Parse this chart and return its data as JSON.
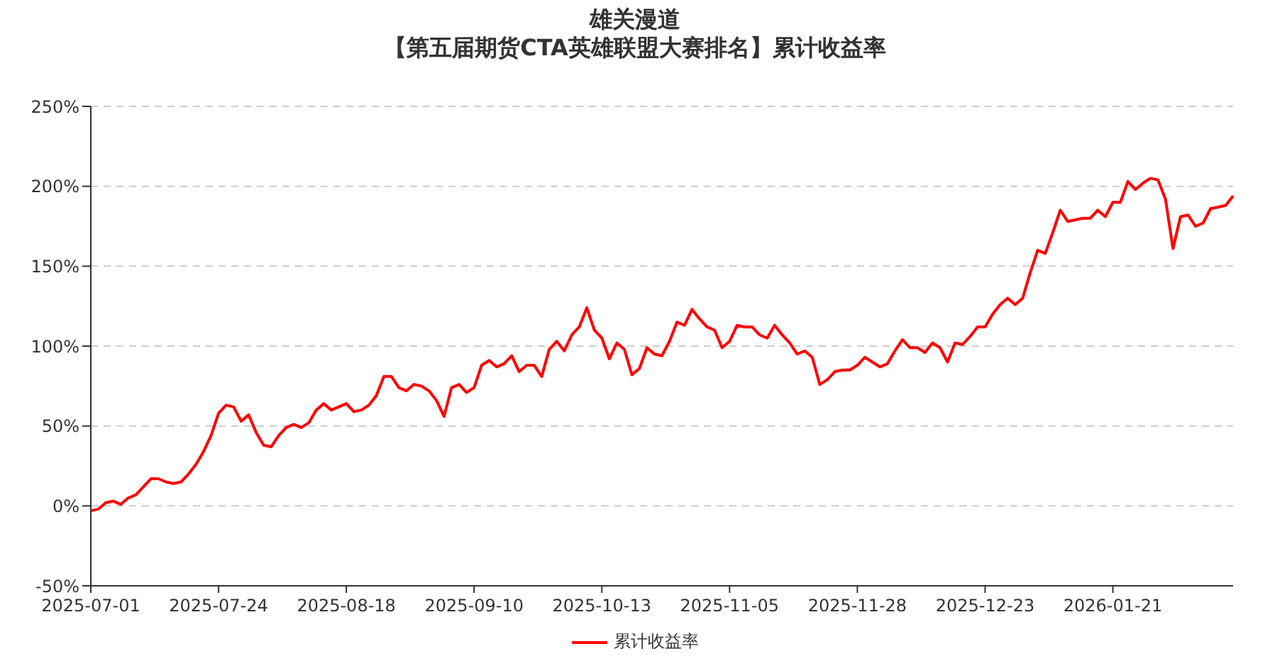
{
  "chart_data": {
    "type": "line",
    "title": "雄关漫道",
    "subtitle": "【第五届期货CTA英雄联盟大赛排名】累计收益率",
    "categories": [
      "2025-07-01",
      null,
      null,
      null,
      null,
      null,
      null,
      null,
      null,
      null,
      null,
      null,
      null,
      null,
      null,
      null,
      null,
      "2025-07-24",
      null,
      null,
      null,
      null,
      null,
      null,
      null,
      null,
      null,
      null,
      null,
      null,
      null,
      null,
      null,
      null,
      "2025-08-18",
      null,
      null,
      null,
      null,
      null,
      null,
      null,
      null,
      null,
      null,
      null,
      null,
      null,
      null,
      null,
      null,
      "2025-09-10",
      null,
      null,
      null,
      null,
      null,
      null,
      null,
      null,
      null,
      null,
      null,
      null,
      null,
      null,
      null,
      null,
      "2025-10-13",
      null,
      null,
      null,
      null,
      null,
      null,
      null,
      null,
      null,
      null,
      null,
      null,
      null,
      null,
      null,
      null,
      "2025-11-05",
      null,
      null,
      null,
      null,
      null,
      null,
      null,
      null,
      null,
      null,
      null,
      null,
      null,
      null,
      null,
      null,
      "2025-11-28",
      null,
      null,
      null,
      null,
      null,
      null,
      null,
      null,
      null,
      null,
      null,
      null,
      null,
      null,
      null,
      null,
      "2025-12-23",
      null,
      null,
      null,
      null,
      null,
      null,
      null,
      null,
      null,
      null,
      null,
      null,
      null,
      null,
      null,
      null,
      "2026-01-21",
      null,
      null,
      null,
      null,
      null,
      null,
      null,
      null,
      null,
      null,
      null,
      null,
      null,
      null,
      null,
      null
    ],
    "series": [
      {
        "name": "累计收益率",
        "color": "#ff0000",
        "values": [
          -3,
          -2,
          2,
          3,
          1,
          5,
          7,
          12,
          17,
          17,
          15,
          14,
          15,
          20,
          26,
          34,
          44,
          58,
          63,
          62,
          53,
          57,
          46,
          38,
          37,
          44,
          49,
          51,
          49,
          52,
          60,
          64,
          60,
          62,
          64,
          59,
          60,
          63,
          69,
          81,
          81,
          74,
          72,
          76,
          75,
          72,
          66,
          56,
          74,
          76,
          71,
          74,
          88,
          91,
          87,
          89,
          94,
          84,
          88,
          88,
          81,
          98,
          103,
          97,
          107,
          112,
          124,
          110,
          105,
          92,
          102,
          98,
          82,
          86,
          99,
          95,
          94,
          103,
          115,
          113,
          123,
          117,
          112,
          110,
          99,
          103,
          113,
          112,
          112,
          107,
          105,
          113,
          107,
          102,
          95,
          97,
          93,
          76,
          79,
          84,
          85,
          85,
          88,
          93,
          90,
          87,
          89,
          97,
          104,
          99,
          99,
          96,
          102,
          99,
          90,
          102,
          101,
          106,
          112,
          112,
          120,
          126,
          130,
          126,
          130,
          146,
          160,
          158,
          171,
          185,
          178,
          179,
          180,
          180,
          185,
          181,
          190,
          190,
          203,
          198,
          202,
          205,
          204,
          192,
          161,
          181,
          182,
          175,
          177,
          186,
          187,
          188,
          194
        ]
      }
    ],
    "ylim": [
      -50,
      250
    ],
    "yticks": [
      {
        "value": -50,
        "label": "-50%"
      },
      {
        "value": 0,
        "label": "0%"
      },
      {
        "value": 50,
        "label": "50%"
      },
      {
        "value": 100,
        "label": "100%"
      },
      {
        "value": 150,
        "label": "150%"
      },
      {
        "value": 200,
        "label": "200%"
      },
      {
        "value": 250,
        "label": "250%"
      }
    ],
    "grid": "y",
    "legend": "bottom",
    "line_style": "solid"
  }
}
